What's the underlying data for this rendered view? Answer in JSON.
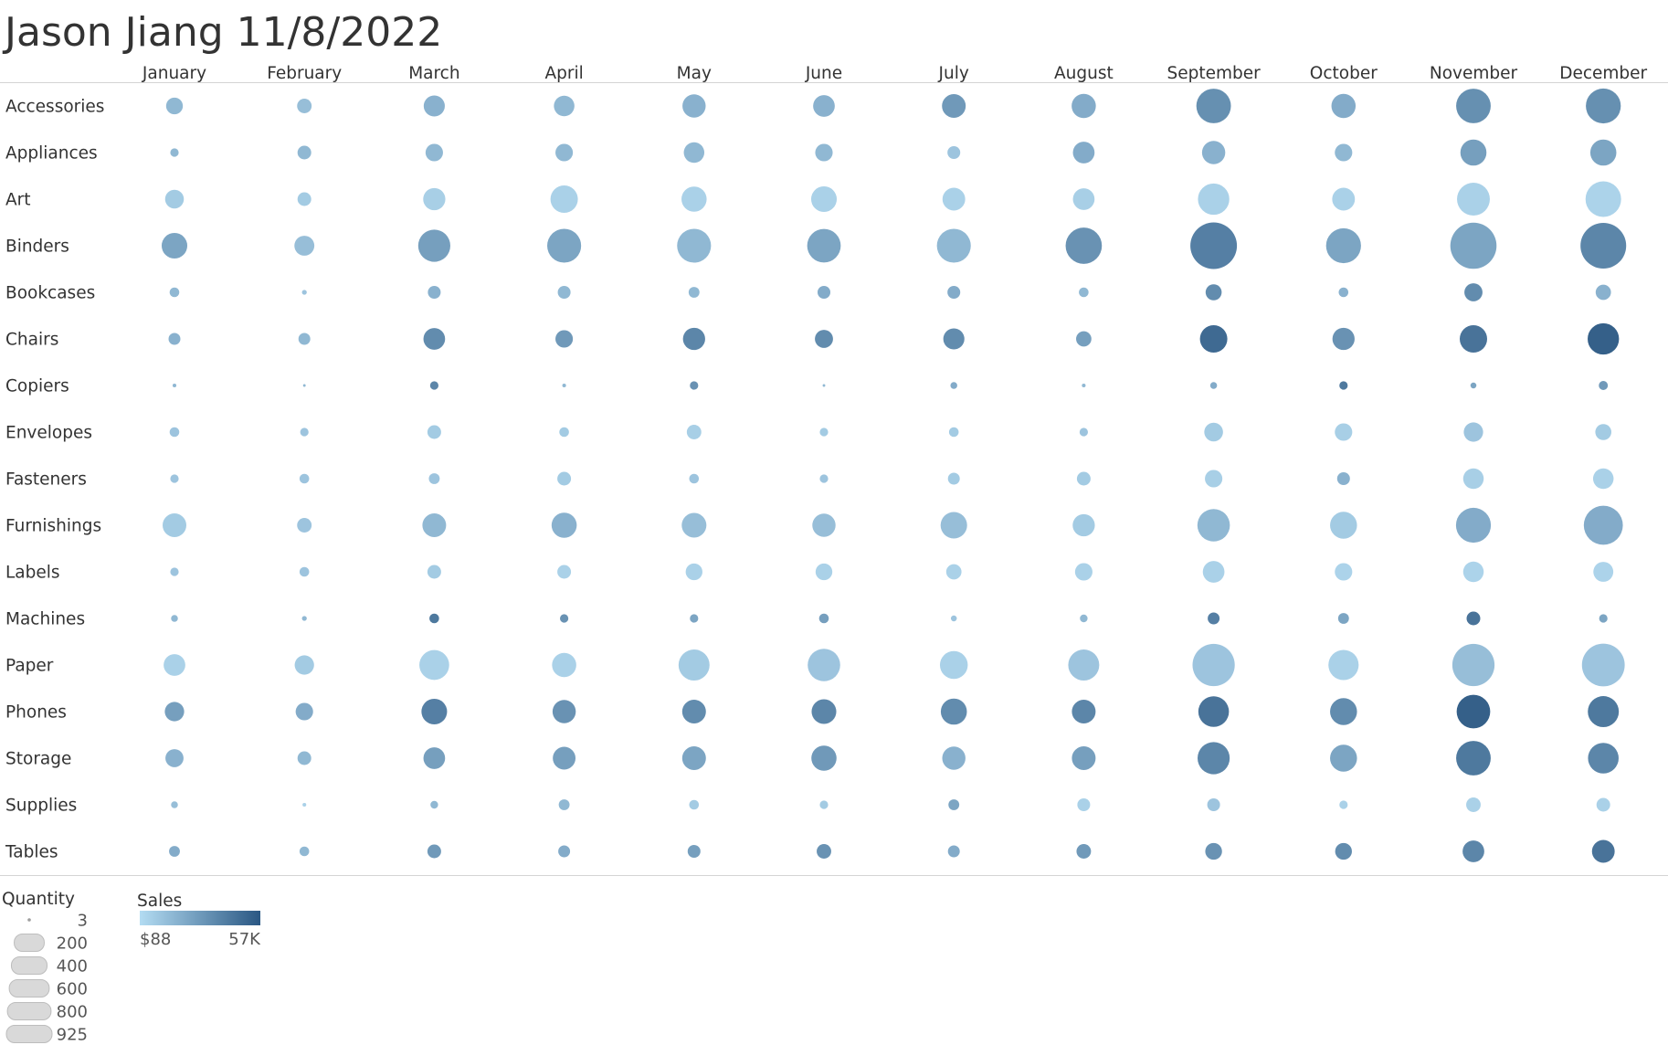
{
  "title": "Jason Jiang 11/8/2022",
  "chart_data": {
    "type": "scatter",
    "subtype": "bubble-matrix",
    "columns": [
      "January",
      "February",
      "March",
      "April",
      "May",
      "June",
      "July",
      "August",
      "September",
      "October",
      "November",
      "December"
    ],
    "rows": [
      "Accessories",
      "Appliances",
      "Art",
      "Binders",
      "Bookcases",
      "Chairs",
      "Copiers",
      "Envelopes",
      "Fasteners",
      "Furnishings",
      "Labels",
      "Machines",
      "Paper",
      "Phones",
      "Storage",
      "Supplies",
      "Tables"
    ],
    "size_measure": "Quantity",
    "color_measure": "Sales",
    "quantity": [
      [
        120,
        90,
        190,
        180,
        230,
        200,
        240,
        250,
        510,
        250,
        510,
        520
      ],
      [
        30,
        80,
        130,
        130,
        180,
        130,
        70,
        200,
        230,
        130,
        290,
        290
      ],
      [
        150,
        80,
        210,
        320,
        270,
        280,
        220,
        200,
        420,
        220,
        460,
        540
      ],
      [
        280,
        170,
        440,
        490,
        490,
        480,
        490,
        560,
        925,
        520,
        910,
        890
      ],
      [
        40,
        10,
        70,
        70,
        50,
        70,
        70,
        40,
        110,
        40,
        140,
        100
      ],
      [
        60,
        60,
        200,
        130,
        210,
        140,
        190,
        100,
        320,
        210,
        320,
        420
      ],
      [
        6,
        3,
        30,
        6,
        30,
        3,
        20,
        6,
        20,
        30,
        15,
        35
      ],
      [
        40,
        30,
        80,
        40,
        90,
        30,
        40,
        30,
        150,
        130,
        160,
        110
      ],
      [
        30,
        40,
        50,
        80,
        40,
        30,
        60,
        80,
        130,
        70,
        180,
        180
      ],
      [
        240,
        90,
        240,
        270,
        260,
        230,
        300,
        210,
        450,
        310,
        520,
        650
      ],
      [
        30,
        40,
        80,
        80,
        120,
        120,
        100,
        130,
        200,
        130,
        180,
        170
      ],
      [
        20,
        10,
        40,
        30,
        30,
        40,
        15,
        25,
        60,
        50,
        80,
        30
      ],
      [
        200,
        160,
        380,
        250,
        410,
        450,
        330,
        410,
        760,
        390,
        760,
        780
      ],
      [
        160,
        130,
        280,
        230,
        240,
        260,
        290,
        240,
        400,
        310,
        480,
        410
      ],
      [
        140,
        80,
        200,
        220,
        240,
        270,
        230,
        240,
        440,
        310,
        510,
        400
      ],
      [
        20,
        6,
        25,
        50,
        40,
        30,
        50,
        70,
        70,
        30,
        90,
        80
      ],
      [
        50,
        40,
        80,
        60,
        70,
        90,
        60,
        90,
        120,
        120,
        200,
        220
      ]
    ],
    "sales_intensity": [
      [
        0.3,
        0.25,
        0.35,
        0.3,
        0.35,
        0.35,
        0.55,
        0.4,
        0.62,
        0.4,
        0.62,
        0.62
      ],
      [
        0.3,
        0.3,
        0.3,
        0.3,
        0.3,
        0.3,
        0.2,
        0.4,
        0.35,
        0.3,
        0.5,
        0.45
      ],
      [
        0.15,
        0.15,
        0.12,
        0.1,
        0.1,
        0.1,
        0.1,
        0.12,
        0.1,
        0.1,
        0.1,
        0.08
      ],
      [
        0.45,
        0.25,
        0.5,
        0.45,
        0.3,
        0.45,
        0.3,
        0.6,
        0.75,
        0.45,
        0.45,
        0.7
      ],
      [
        0.3,
        0.2,
        0.35,
        0.3,
        0.3,
        0.4,
        0.4,
        0.3,
        0.65,
        0.35,
        0.65,
        0.35
      ],
      [
        0.35,
        0.3,
        0.65,
        0.55,
        0.7,
        0.65,
        0.65,
        0.5,
        0.92,
        0.6,
        0.85,
        1.0
      ],
      [
        0.3,
        0.3,
        0.7,
        0.3,
        0.6,
        0.3,
        0.4,
        0.3,
        0.4,
        0.8,
        0.45,
        0.55
      ],
      [
        0.2,
        0.2,
        0.15,
        0.15,
        0.12,
        0.15,
        0.15,
        0.2,
        0.15,
        0.12,
        0.2,
        0.15
      ],
      [
        0.2,
        0.2,
        0.2,
        0.15,
        0.2,
        0.2,
        0.15,
        0.15,
        0.12,
        0.35,
        0.12,
        0.1
      ],
      [
        0.15,
        0.2,
        0.3,
        0.35,
        0.25,
        0.25,
        0.25,
        0.15,
        0.3,
        0.15,
        0.4,
        0.4
      ],
      [
        0.2,
        0.2,
        0.15,
        0.1,
        0.1,
        0.1,
        0.1,
        0.1,
        0.1,
        0.08,
        0.08,
        0.08
      ],
      [
        0.3,
        0.3,
        0.8,
        0.6,
        0.45,
        0.5,
        0.2,
        0.3,
        0.75,
        0.45,
        0.85,
        0.45
      ],
      [
        0.1,
        0.15,
        0.1,
        0.1,
        0.15,
        0.2,
        0.1,
        0.2,
        0.2,
        0.1,
        0.25,
        0.2
      ],
      [
        0.5,
        0.4,
        0.75,
        0.6,
        0.65,
        0.7,
        0.65,
        0.7,
        0.85,
        0.65,
        1.0,
        0.8
      ],
      [
        0.35,
        0.3,
        0.5,
        0.5,
        0.45,
        0.55,
        0.35,
        0.5,
        0.7,
        0.45,
        0.8,
        0.7
      ],
      [
        0.25,
        0.1,
        0.3,
        0.3,
        0.15,
        0.15,
        0.45,
        0.1,
        0.2,
        0.1,
        0.1,
        0.1
      ],
      [
        0.4,
        0.3,
        0.55,
        0.4,
        0.5,
        0.6,
        0.4,
        0.55,
        0.6,
        0.65,
        0.7,
        0.85
      ]
    ],
    "legend": {
      "quantity": {
        "title": "Quantity",
        "entries": [
          "3",
          "200",
          "400",
          "600",
          "800",
          "925"
        ],
        "values": [
          3,
          200,
          400,
          600,
          800,
          925
        ]
      },
      "sales": {
        "title": "Sales",
        "min_label": "$88",
        "max_label": "57K",
        "color_low": "#b3dcf2",
        "color_high": "#2a5783"
      }
    },
    "colors": {
      "low": "#b3dcf2",
      "high": "#2a5783",
      "legend_bubble": "#d9d9d9",
      "legend_bubble_stroke": "#bdbdbd",
      "rule": "#d4d4d4"
    }
  }
}
